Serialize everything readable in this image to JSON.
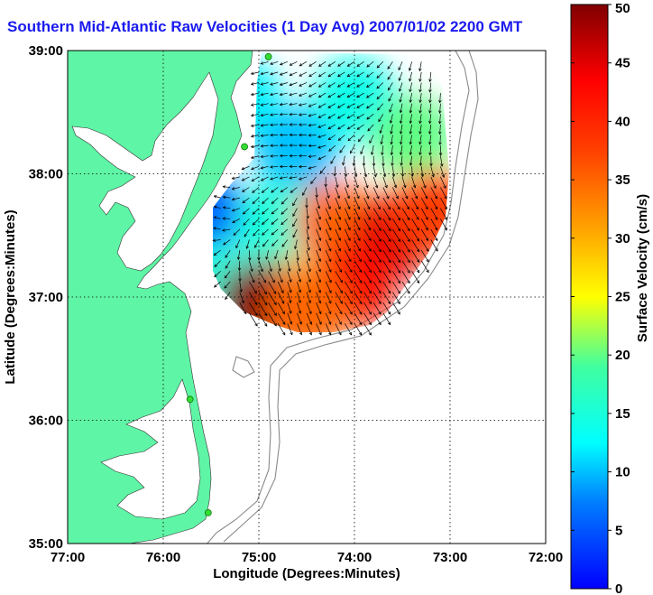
{
  "chart_data": {
    "type": "heatmap",
    "title": "Southern Mid-Atlantic Raw Velocities (1 Day Avg) 2007/01/02 2200 GMT",
    "xlabel": "Longitude (Degrees:Minutes)",
    "ylabel": "Latitude (Degrees:Minutes)",
    "xlim": [
      -77,
      -72
    ],
    "ylim": [
      35,
      39
    ],
    "x_ticks": [
      {
        "value": -77,
        "label": "77:00"
      },
      {
        "value": -76,
        "label": "76:00"
      },
      {
        "value": -75,
        "label": "75:00"
      },
      {
        "value": -74,
        "label": "74:00"
      },
      {
        "value": -73,
        "label": "73:00"
      },
      {
        "value": -72,
        "label": "72:00"
      }
    ],
    "y_ticks": [
      {
        "value": 39,
        "label": "39:00"
      },
      {
        "value": 38,
        "label": "38:00"
      },
      {
        "value": 37,
        "label": "37:00"
      },
      {
        "value": 36,
        "label": "36:00"
      },
      {
        "value": 35,
        "label": "35:00"
      }
    ],
    "grid": true,
    "colorbar": {
      "label": "Surface Velocity (cm/s)",
      "min": 0,
      "max": 50,
      "ticks": [
        0,
        5,
        10,
        15,
        20,
        25,
        30,
        35,
        40,
        45,
        50
      ]
    },
    "velocity_field_samples": [
      {
        "lon": -75.2,
        "lat": 38.6,
        "speed_cm_s": 12
      },
      {
        "lon": -74.6,
        "lat": 38.2,
        "speed_cm_s": 10
      },
      {
        "lon": -74.0,
        "lat": 38.6,
        "speed_cm_s": 14
      },
      {
        "lon": -73.4,
        "lat": 38.3,
        "speed_cm_s": 20
      },
      {
        "lon": -75.6,
        "lat": 37.7,
        "speed_cm_s": 6
      },
      {
        "lon": -74.8,
        "lat": 37.6,
        "speed_cm_s": 15
      },
      {
        "lon": -74.2,
        "lat": 37.6,
        "speed_cm_s": 35
      },
      {
        "lon": -73.6,
        "lat": 37.5,
        "speed_cm_s": 45
      },
      {
        "lon": -73.2,
        "lat": 37.7,
        "speed_cm_s": 38
      },
      {
        "lon": -75.4,
        "lat": 37.1,
        "speed_cm_s": 15
      },
      {
        "lon": -74.6,
        "lat": 37.0,
        "speed_cm_s": 28
      },
      {
        "lon": -74.0,
        "lat": 37.1,
        "speed_cm_s": 42
      },
      {
        "lon": -75.0,
        "lat": 36.95,
        "speed_cm_s": 50
      },
      {
        "lon": -74.5,
        "lat": 36.9,
        "speed_cm_s": 35
      }
    ],
    "coastal_stations": [
      {
        "lon": -74.9,
        "lat": 38.95
      },
      {
        "lon": -75.15,
        "lat": 38.22
      },
      {
        "lon": -75.72,
        "lat": 36.17
      },
      {
        "lon": -75.53,
        "lat": 35.25
      }
    ]
  },
  "colors": {
    "title": "#1a1aee",
    "land": "#5ff5a6",
    "station": "#33dd33"
  }
}
